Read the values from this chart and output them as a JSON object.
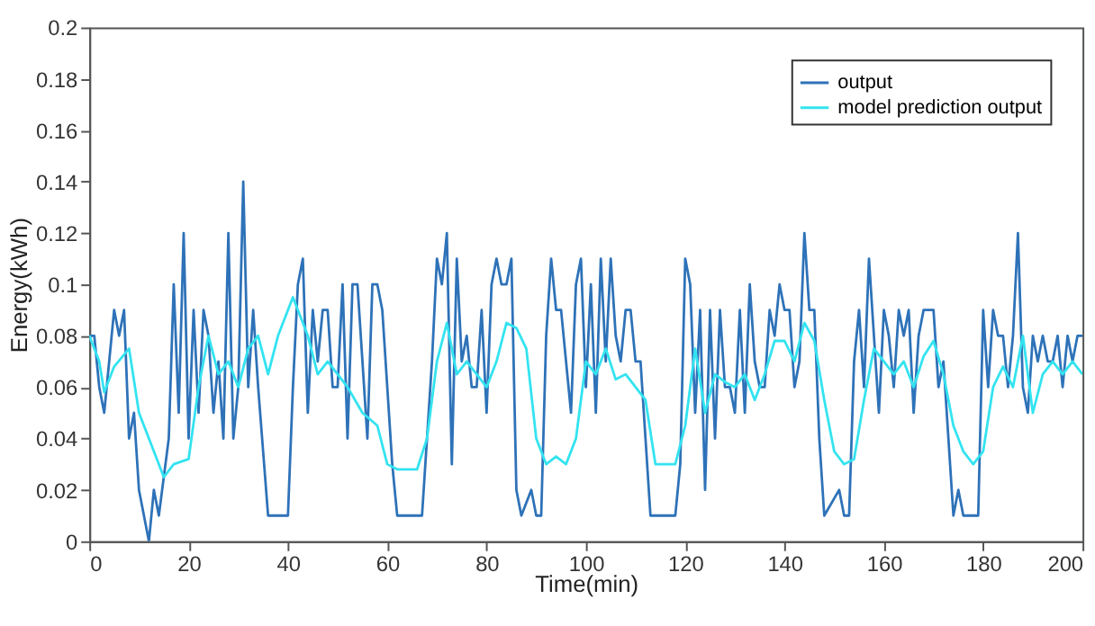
{
  "chart_data": {
    "type": "line",
    "xlabel": "Time(min)",
    "ylabel": "Energy(kWh)",
    "xlim": [
      0,
      200
    ],
    "ylim": [
      0,
      0.2
    ],
    "xticks": [
      0,
      20,
      40,
      60,
      80,
      100,
      120,
      140,
      160,
      180,
      200
    ],
    "yticks": [
      0,
      0.02,
      0.04,
      0.06,
      0.08,
      0.1,
      0.12,
      0.14,
      0.16,
      0.18,
      0.2
    ],
    "grid": false,
    "legend": "top right",
    "line_style": "solid",
    "marker": "none",
    "series": [
      {
        "name": "output",
        "color": "#2e72b8",
        "x": [
          0,
          1,
          2,
          3,
          4,
          5,
          6,
          7,
          8,
          9,
          10,
          12,
          13,
          14,
          16,
          17,
          18,
          19,
          20,
          21,
          22,
          23,
          24,
          25,
          26,
          27,
          28,
          29,
          30,
          31,
          32,
          33,
          34,
          36,
          40,
          41,
          42,
          43,
          44,
          45,
          46,
          47,
          48,
          49,
          50,
          51,
          52,
          53,
          54,
          55,
          56,
          57,
          58,
          59,
          60,
          61,
          62,
          67,
          68,
          69,
          70,
          71,
          72,
          73,
          74,
          75,
          76,
          77,
          78,
          79,
          80,
          81,
          82,
          83,
          84,
          85,
          86,
          87,
          89,
          90,
          91,
          92,
          93,
          94,
          95,
          96,
          97,
          98,
          99,
          100,
          101,
          102,
          103,
          104,
          105,
          106,
          107,
          108,
          109,
          110,
          111,
          112,
          113,
          118,
          119,
          120,
          121,
          122,
          123,
          124,
          125,
          126,
          127,
          128,
          129,
          130,
          131,
          132,
          133,
          134,
          135,
          136,
          137,
          138,
          139,
          140,
          141,
          142,
          143,
          144,
          145,
          146,
          147,
          148,
          151,
          152,
          153,
          154,
          155,
          156,
          157,
          158,
          159,
          160,
          161,
          162,
          163,
          164,
          165,
          166,
          167,
          168,
          169,
          170,
          171,
          172,
          173,
          174,
          175,
          176,
          179,
          180,
          181,
          182,
          183,
          184,
          185,
          186,
          187,
          188,
          189,
          190,
          191,
          192,
          193,
          194,
          195,
          196,
          197,
          198,
          199,
          200
        ],
        "values": [
          0.08,
          0.08,
          0.06,
          0.05,
          0.07,
          0.09,
          0.08,
          0.09,
          0.04,
          0.05,
          0.02,
          0.0,
          0.02,
          0.01,
          0.04,
          0.1,
          0.05,
          0.12,
          0.04,
          0.09,
          0.05,
          0.09,
          0.08,
          0.05,
          0.07,
          0.04,
          0.12,
          0.04,
          0.06,
          0.14,
          0.06,
          0.09,
          0.06,
          0.01,
          0.01,
          0.06,
          0.1,
          0.11,
          0.05,
          0.09,
          0.07,
          0.09,
          0.09,
          0.06,
          0.06,
          0.1,
          0.04,
          0.1,
          0.1,
          0.07,
          0.04,
          0.1,
          0.1,
          0.09,
          0.06,
          0.03,
          0.01,
          0.01,
          0.04,
          0.07,
          0.11,
          0.1,
          0.12,
          0.03,
          0.11,
          0.07,
          0.08,
          0.06,
          0.06,
          0.09,
          0.05,
          0.1,
          0.11,
          0.1,
          0.1,
          0.11,
          0.02,
          0.01,
          0.02,
          0.01,
          0.01,
          0.08,
          0.11,
          0.09,
          0.09,
          0.07,
          0.05,
          0.1,
          0.11,
          0.06,
          0.1,
          0.05,
          0.11,
          0.07,
          0.11,
          0.08,
          0.07,
          0.09,
          0.09,
          0.07,
          0.07,
          0.04,
          0.01,
          0.01,
          0.03,
          0.11,
          0.1,
          0.05,
          0.09,
          0.02,
          0.09,
          0.04,
          0.09,
          0.06,
          0.06,
          0.05,
          0.09,
          0.05,
          0.1,
          0.07,
          0.06,
          0.06,
          0.09,
          0.08,
          0.1,
          0.09,
          0.09,
          0.06,
          0.07,
          0.12,
          0.09,
          0.09,
          0.04,
          0.01,
          0.02,
          0.01,
          0.01,
          0.07,
          0.09,
          0.06,
          0.11,
          0.08,
          0.05,
          0.09,
          0.08,
          0.06,
          0.09,
          0.08,
          0.09,
          0.05,
          0.08,
          0.09,
          0.09,
          0.09,
          0.06,
          0.07,
          0.04,
          0.01,
          0.02,
          0.01,
          0.01,
          0.09,
          0.06,
          0.09,
          0.08,
          0.08,
          0.06,
          0.08,
          0.12,
          0.06,
          0.05,
          0.08,
          0.07,
          0.08,
          0.07,
          0.07,
          0.08,
          0.06,
          0.08,
          0.07,
          0.08,
          0.08
        ]
      },
      {
        "name": "model prediction output",
        "color": "#33e3f0",
        "x": [
          0,
          2,
          3,
          5,
          8,
          10,
          12,
          15,
          17,
          20,
          22,
          24,
          26,
          28,
          30,
          32,
          34,
          36,
          38,
          41,
          44,
          46,
          48,
          52,
          55,
          58,
          60,
          62,
          64,
          66,
          68,
          70,
          72,
          74,
          76,
          78,
          80,
          82,
          84,
          86,
          88,
          90,
          92,
          94,
          96,
          98,
          100,
          102,
          104,
          106,
          108,
          110,
          112,
          114,
          118,
          120,
          122,
          124,
          126,
          128,
          130,
          132,
          134,
          136,
          138,
          140,
          142,
          144,
          146,
          148,
          150,
          152,
          154,
          156,
          158,
          160,
          162,
          164,
          166,
          168,
          170,
          172,
          174,
          176,
          178,
          180,
          182,
          184,
          186,
          188,
          190,
          192,
          194,
          196,
          198,
          200
        ],
        "values": [
          0.08,
          0.07,
          0.058,
          0.068,
          0.075,
          0.05,
          0.04,
          0.025,
          0.03,
          0.032,
          0.06,
          0.08,
          0.065,
          0.07,
          0.06,
          0.075,
          0.08,
          0.065,
          0.08,
          0.095,
          0.08,
          0.065,
          0.07,
          0.06,
          0.05,
          0.045,
          0.03,
          0.028,
          0.028,
          0.028,
          0.04,
          0.07,
          0.085,
          0.065,
          0.07,
          0.065,
          0.06,
          0.07,
          0.085,
          0.083,
          0.075,
          0.04,
          0.03,
          0.033,
          0.03,
          0.04,
          0.07,
          0.065,
          0.075,
          0.063,
          0.065,
          0.06,
          0.055,
          0.03,
          0.03,
          0.045,
          0.075,
          0.05,
          0.065,
          0.062,
          0.06,
          0.065,
          0.055,
          0.065,
          0.078,
          0.078,
          0.07,
          0.085,
          0.078,
          0.055,
          0.035,
          0.03,
          0.032,
          0.055,
          0.075,
          0.07,
          0.065,
          0.07,
          0.06,
          0.072,
          0.078,
          0.065,
          0.045,
          0.035,
          0.03,
          0.035,
          0.06,
          0.068,
          0.06,
          0.08,
          0.05,
          0.065,
          0.07,
          0.065,
          0.07,
          0.065
        ]
      }
    ]
  }
}
